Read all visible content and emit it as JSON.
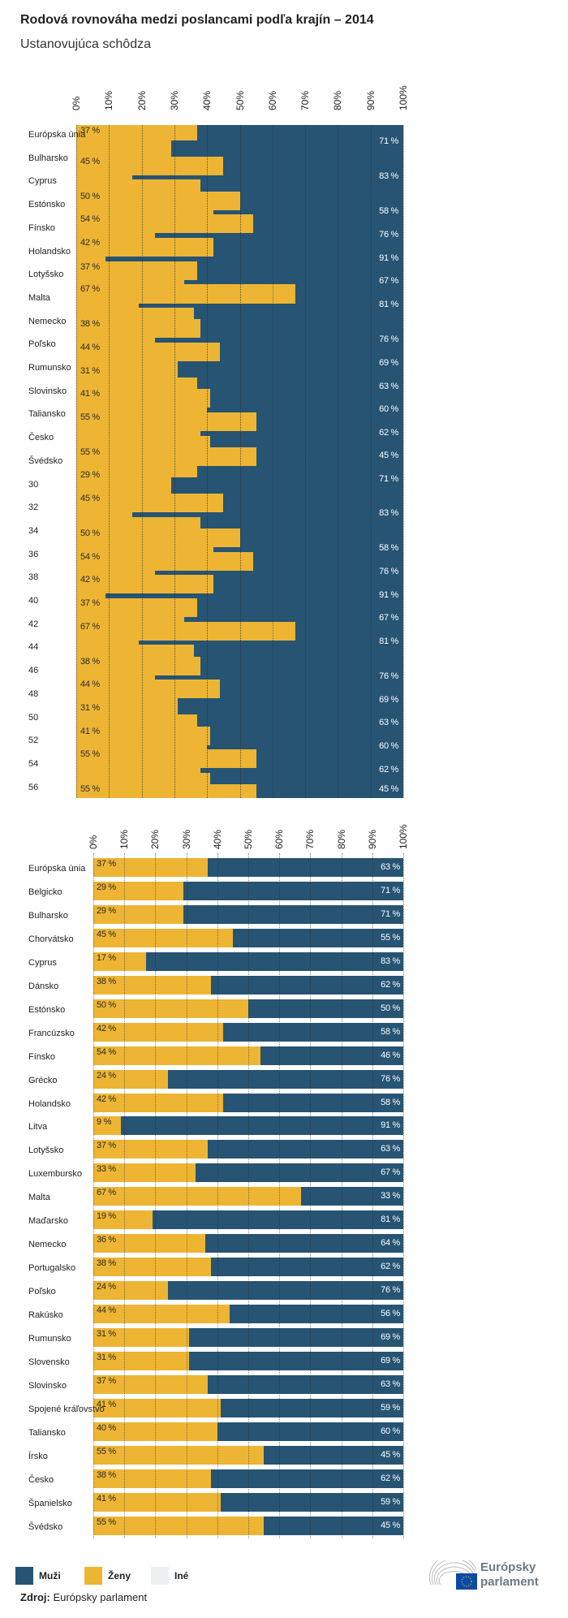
{
  "title": "Rodová rovnováha medzi poslancami podľa krajín – 2014",
  "subtitle": "Ustanovujúca schôdza",
  "colors": {
    "men": "#275473",
    "women": "#EDB533",
    "other": "#EEEFF0"
  },
  "legend": [
    {
      "label": "Muži",
      "color": "#275473"
    },
    {
      "label": "Ženy",
      "color": "#EDB533"
    },
    {
      "label": "Iné",
      "color": "#EEEFF0"
    }
  ],
  "source": {
    "label": "Zdroj:",
    "text": "Európsky parlament"
  },
  "logo": {
    "text_line1": "Európsky",
    "text_line2": "parlament",
    "icon": "eu-parliament-hemicycle-flag-logo"
  },
  "chart_data": [
    {
      "type": "area",
      "xlim": [
        0,
        100
      ],
      "xticks": [
        "0%",
        "10%",
        "20%",
        "30%",
        "40%",
        "50%",
        "60%",
        "70%",
        "80%",
        "90%",
        "100%"
      ],
      "grid": true,
      "categories": [
        "Európska únia",
        "Bulharsko",
        "Cyprus",
        "Estónsko",
        "Fínsko",
        "Holandsko",
        "Lotyšsko",
        "Malta",
        "Nemecko",
        "Poľsko",
        "Rumunsko",
        "Slovinsko",
        "Taliansko",
        "Česko",
        "Švédsko",
        "30",
        "32",
        "34",
        "36",
        "38",
        "40",
        "42",
        "44",
        "46",
        "48",
        "50",
        "52",
        "54",
        "56"
      ],
      "women_steps": [
        37,
        29,
        45,
        17,
        38,
        50,
        42,
        54,
        24,
        42,
        9,
        37,
        33,
        67,
        19,
        36,
        38,
        24,
        44,
        31,
        37,
        41,
        40,
        55,
        38,
        41,
        55,
        37,
        29,
        45,
        17,
        38,
        50,
        42,
        54,
        24,
        42,
        9,
        37,
        33,
        67,
        19,
        36,
        38,
        24,
        44,
        31,
        37,
        41,
        40,
        55,
        38,
        41,
        55
      ],
      "women_labels": [
        "37 %",
        "45 %",
        "50 %",
        "54 %",
        "42 %",
        "37 %",
        "67 %",
        "38 %",
        "44 %",
        "31 %",
        "41 %",
        "55 %",
        "55 %",
        "29 %",
        "45 %",
        "50 %",
        "54 %",
        "42 %",
        "37 %",
        "67 %",
        "38 %",
        "44 %",
        "31 %",
        "41 %",
        "55 %",
        "55 %"
      ],
      "men_labels": [
        "71 %",
        "83 %",
        "58 %",
        "76 %",
        "91 %",
        "67 %",
        "81 %",
        "76 %",
        "69 %",
        "63 %",
        "60 %",
        "62 %",
        "45 %",
        "71 %",
        "83 %",
        "58 %",
        "76 %",
        "91 %",
        "67 %",
        "81 %",
        "76 %",
        "69 %",
        "63 %",
        "60 %",
        "62 %",
        "45 %"
      ]
    },
    {
      "type": "bar",
      "stacked": true,
      "orientation": "horizontal",
      "xlim": [
        0,
        100
      ],
      "xticks": [
        "0%",
        "10%",
        "20%",
        "30%",
        "40%",
        "50%",
        "60%",
        "70%",
        "80%",
        "90%",
        "100%"
      ],
      "grid": true,
      "categories": [
        "Európska únia",
        "Belgicko",
        "Bulharsko",
        "Chorvátsko",
        "Cyprus",
        "Dánsko",
        "Estónsko",
        "Francúzsko",
        "Fínsko",
        "Grécko",
        "Holandsko",
        "Litva",
        "Lotyšsko",
        "Luxembursko",
        "Malta",
        "Maďarsko",
        "Nemecko",
        "Portugalsko",
        "Poľsko",
        "Rakúsko",
        "Rumunsko",
        "Slovensko",
        "Slovinsko",
        "Spojené kráľovstvo",
        "Taliansko",
        "Írsko",
        "Česko",
        "Španielsko",
        "Švédsko"
      ],
      "series": [
        {
          "name": "Ženy",
          "values": [
            37,
            29,
            29,
            45,
            17,
            38,
            50,
            42,
            54,
            24,
            42,
            9,
            37,
            33,
            67,
            19,
            36,
            38,
            24,
            44,
            31,
            31,
            37,
            41,
            40,
            55,
            38,
            41,
            55
          ]
        },
        {
          "name": "Muži",
          "values": [
            63,
            71,
            71,
            55,
            83,
            62,
            50,
            58,
            46,
            76,
            58,
            91,
            63,
            67,
            33,
            81,
            64,
            62,
            76,
            56,
            69,
            69,
            63,
            59,
            60,
            45,
            62,
            59,
            45
          ]
        }
      ],
      "women_labels": [
        "37 %",
        "29 %",
        "29 %",
        "45 %",
        "17 %",
        "38 %",
        "50 %",
        "42 %",
        "54 %",
        "24 %",
        "42 %",
        "9 %",
        "37 %",
        "33 %",
        "67 %",
        "19 %",
        "36 %",
        "38 %",
        "24 %",
        "44 %",
        "31 %",
        "31 %",
        "37 %",
        "41 %",
        "40 %",
        "55 %",
        "38 %",
        "41 %",
        "55 %"
      ],
      "men_labels": [
        "63 %",
        "71 %",
        "71 %",
        "55 %",
        "83 %",
        "62 %",
        "50 %",
        "58 %",
        "46 %",
        "76 %",
        "58 %",
        "91 %",
        "63 %",
        "67 %",
        "33 %",
        "81 %",
        "64 %",
        "62 %",
        "76 %",
        "56 %",
        "69 %",
        "69 %",
        "63 %",
        "59 %",
        "60 %",
        "45 %",
        "62 %",
        "59 %",
        "45 %"
      ]
    }
  ]
}
